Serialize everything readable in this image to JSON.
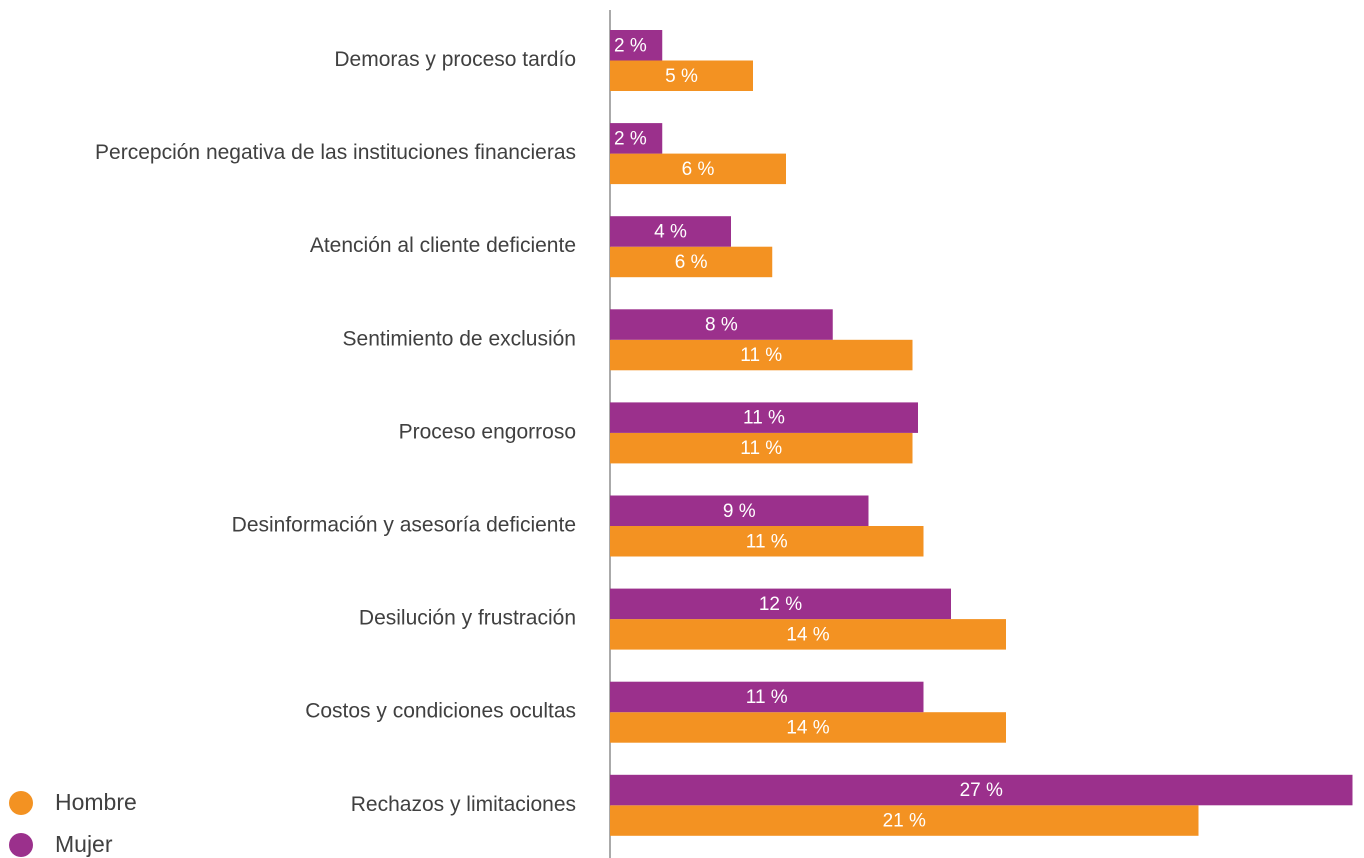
{
  "chart_data": {
    "type": "hbar",
    "categories": [
      "Demoras y proceso tardío",
      "Percepción negativa de las instituciones financieras",
      "Atención al cliente deficiente",
      "Sentimiento de exclusión",
      "Proceso engorroso",
      "Desinformación y asesoría deficiente",
      "Desilución y frustración",
      "Costos y condiciones ocultas",
      "Rechazos y limitaciones"
    ],
    "series": [
      {
        "name": "Hombre",
        "color": "#f39222",
        "values": [
          5.2,
          6.4,
          5.9,
          11.0,
          11.0,
          11.4,
          14.4,
          14.4,
          21.4
        ],
        "value_labels": [
          "5 %",
          "6 %",
          "6 %",
          "11 %",
          "11 %",
          "11 %",
          "14 %",
          "14 %",
          "21 %"
        ]
      },
      {
        "name": "Mujer",
        "color": "#9b308c",
        "values": [
          1.9,
          1.9,
          4.4,
          8.1,
          11.2,
          9.4,
          12.4,
          11.4,
          27.0
        ],
        "value_labels": [
          "2 %",
          "2 %",
          "4 %",
          "8 %",
          "11 %",
          "9 %",
          "12 %",
          "11 %",
          "27 %"
        ]
      }
    ],
    "xlim": [
      0,
      27.2
    ]
  }
}
